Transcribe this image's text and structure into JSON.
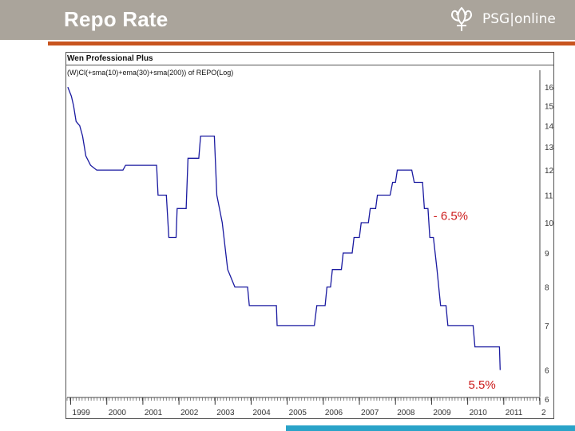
{
  "header": {
    "title": "Repo Rate",
    "logo_text": "PSG|online",
    "colors": {
      "header_bg": "#aaa49b",
      "rule": "#c8541e",
      "accent_bar": "#2aa3c8"
    }
  },
  "chart_panel": {
    "name": "Wen Professional Plus",
    "formula": "(W)Cl(+sma(10)+ema(30)+sma(200)) of REPO(Log)"
  },
  "chart_data": {
    "type": "line",
    "title": "",
    "xlabel": "",
    "ylabel": "",
    "y_scale": "log",
    "ylim": [
      5.5,
      16.5
    ],
    "xlim": [
      1998.9,
      2012.0
    ],
    "grid": false,
    "line_color": "#1a1aa0",
    "y_ticks": [
      "16",
      "15",
      "14",
      "13",
      "12",
      "11",
      "10",
      "9",
      "8",
      "7",
      "6",
      "6"
    ],
    "x_ticks": [
      "1999",
      "2000",
      "2001",
      "2002",
      "2003",
      "2004",
      "2005",
      "2006",
      "2007",
      "2008",
      "2009",
      "2010",
      "2011",
      "2"
    ],
    "series": [
      {
        "values": [
          [
            1998.92,
            16.0
          ],
          [
            1999.02,
            15.5
          ],
          [
            1999.08,
            15.0
          ],
          [
            1999.15,
            14.2
          ],
          [
            1999.25,
            14.0
          ],
          [
            1999.33,
            13.5
          ],
          [
            1999.42,
            12.6
          ],
          [
            1999.55,
            12.2
          ],
          [
            1999.72,
            12.0
          ],
          [
            2000.45,
            12.0
          ],
          [
            2000.52,
            12.2
          ],
          [
            2001.38,
            12.2
          ],
          [
            2001.42,
            11.0
          ],
          [
            2001.65,
            11.0
          ],
          [
            2001.72,
            9.5
          ],
          [
            2001.92,
            9.5
          ],
          [
            2001.95,
            10.5
          ],
          [
            2002.2,
            10.5
          ],
          [
            2002.25,
            12.5
          ],
          [
            2002.55,
            12.5
          ],
          [
            2002.6,
            13.5
          ],
          [
            2002.98,
            13.5
          ],
          [
            2003.05,
            11.0
          ],
          [
            2003.2,
            10.0
          ],
          [
            2003.35,
            8.5
          ],
          [
            2003.55,
            8.0
          ],
          [
            2003.9,
            8.0
          ],
          [
            2003.95,
            7.5
          ],
          [
            2004.7,
            7.5
          ],
          [
            2004.72,
            7.0
          ],
          [
            2005.3,
            7.0
          ],
          [
            2005.75,
            7.0
          ],
          [
            2005.82,
            7.5
          ],
          [
            2006.05,
            7.5
          ],
          [
            2006.1,
            8.0
          ],
          [
            2006.2,
            8.0
          ],
          [
            2006.25,
            8.5
          ],
          [
            2006.5,
            8.5
          ],
          [
            2006.55,
            9.0
          ],
          [
            2006.8,
            9.0
          ],
          [
            2006.85,
            9.5
          ],
          [
            2007.0,
            9.5
          ],
          [
            2007.05,
            10.0
          ],
          [
            2007.25,
            10.0
          ],
          [
            2007.3,
            10.5
          ],
          [
            2007.45,
            10.5
          ],
          [
            2007.5,
            11.0
          ],
          [
            2007.85,
            11.0
          ],
          [
            2007.92,
            11.5
          ],
          [
            2008.0,
            11.5
          ],
          [
            2008.05,
            12.0
          ],
          [
            2008.45,
            12.0
          ],
          [
            2008.52,
            11.5
          ],
          [
            2008.75,
            11.5
          ],
          [
            2008.8,
            10.5
          ],
          [
            2008.9,
            10.5
          ],
          [
            2008.95,
            9.5
          ],
          [
            2009.05,
            9.5
          ],
          [
            2009.15,
            8.5
          ],
          [
            2009.25,
            7.5
          ],
          [
            2009.4,
            7.5
          ],
          [
            2009.45,
            7.0
          ],
          [
            2009.95,
            7.0
          ],
          [
            2010.15,
            7.0
          ],
          [
            2010.2,
            6.5
          ],
          [
            2010.7,
            6.5
          ],
          [
            2010.88,
            6.5
          ],
          [
            2010.9,
            6.0
          ]
        ]
      }
    ],
    "annotations": [
      "- 6.5%",
      "5.5%"
    ],
    "annotation_color": "#cc1a1a"
  }
}
